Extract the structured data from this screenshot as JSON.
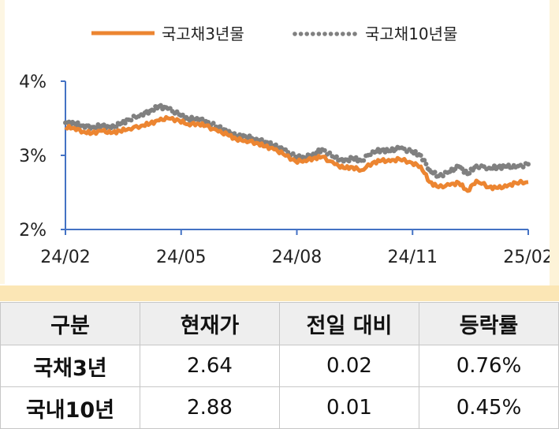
{
  "chart_data": {
    "type": "line",
    "legend": {
      "position": "top-center"
    },
    "x_ticks": [
      "24/02",
      "24/05",
      "24/08",
      "24/11",
      "25/02"
    ],
    "y_ticks": [
      "4%",
      "3%",
      "2%"
    ],
    "ylim": [
      2,
      4
    ],
    "xlim": [
      "2024-02-01",
      "2025-02-01"
    ],
    "grid": false,
    "series": [
      {
        "name": "국고채3년물",
        "color": "#ec8531",
        "style": "solid",
        "points": [
          [
            "2024-02-01",
            3.38
          ],
          [
            "2024-02-08",
            3.37
          ],
          [
            "2024-02-15",
            3.32
          ],
          [
            "2024-02-22",
            3.3
          ],
          [
            "2024-03-01",
            3.33
          ],
          [
            "2024-03-08",
            3.3
          ],
          [
            "2024-03-15",
            3.33
          ],
          [
            "2024-03-22",
            3.36
          ],
          [
            "2024-04-01",
            3.4
          ],
          [
            "2024-04-08",
            3.43
          ],
          [
            "2024-04-15",
            3.47
          ],
          [
            "2024-04-22",
            3.5
          ],
          [
            "2024-05-01",
            3.47
          ],
          [
            "2024-05-08",
            3.42
          ],
          [
            "2024-05-15",
            3.43
          ],
          [
            "2024-05-22",
            3.4
          ],
          [
            "2024-06-01",
            3.32
          ],
          [
            "2024-06-08",
            3.28
          ],
          [
            "2024-06-15",
            3.22
          ],
          [
            "2024-06-22",
            3.2
          ],
          [
            "2024-07-01",
            3.17
          ],
          [
            "2024-07-08",
            3.12
          ],
          [
            "2024-07-15",
            3.08
          ],
          [
            "2024-07-22",
            3.02
          ],
          [
            "2024-08-01",
            2.92
          ],
          [
            "2024-08-08",
            2.93
          ],
          [
            "2024-08-15",
            2.96
          ],
          [
            "2024-08-22",
            2.98
          ],
          [
            "2024-09-01",
            2.88
          ],
          [
            "2024-09-08",
            2.83
          ],
          [
            "2024-09-15",
            2.84
          ],
          [
            "2024-09-22",
            2.8
          ],
          [
            "2024-10-01",
            2.9
          ],
          [
            "2024-10-08",
            2.93
          ],
          [
            "2024-10-15",
            2.92
          ],
          [
            "2024-10-22",
            2.95
          ],
          [
            "2024-11-01",
            2.9
          ],
          [
            "2024-11-08",
            2.85
          ],
          [
            "2024-11-15",
            2.64
          ],
          [
            "2024-11-22",
            2.57
          ],
          [
            "2024-12-01",
            2.6
          ],
          [
            "2024-12-08",
            2.63
          ],
          [
            "2024-12-15",
            2.52
          ],
          [
            "2024-12-22",
            2.66
          ],
          [
            "2025-01-01",
            2.57
          ],
          [
            "2025-01-08",
            2.56
          ],
          [
            "2025-01-15",
            2.58
          ],
          [
            "2025-01-22",
            2.63
          ],
          [
            "2025-02-01",
            2.64
          ]
        ]
      },
      {
        "name": "국고채10년물",
        "color": "#808080",
        "style": "dotted",
        "points": [
          [
            "2024-02-01",
            3.44
          ],
          [
            "2024-02-08",
            3.43
          ],
          [
            "2024-02-15",
            3.4
          ],
          [
            "2024-02-22",
            3.38
          ],
          [
            "2024-03-01",
            3.4
          ],
          [
            "2024-03-08",
            3.37
          ],
          [
            "2024-03-15",
            3.42
          ],
          [
            "2024-03-22",
            3.48
          ],
          [
            "2024-04-01",
            3.55
          ],
          [
            "2024-04-08",
            3.6
          ],
          [
            "2024-04-15",
            3.66
          ],
          [
            "2024-04-22",
            3.63
          ],
          [
            "2024-05-01",
            3.55
          ],
          [
            "2024-05-08",
            3.49
          ],
          [
            "2024-05-15",
            3.5
          ],
          [
            "2024-05-22",
            3.46
          ],
          [
            "2024-06-01",
            3.38
          ],
          [
            "2024-06-08",
            3.32
          ],
          [
            "2024-06-15",
            3.26
          ],
          [
            "2024-06-22",
            3.26
          ],
          [
            "2024-07-01",
            3.22
          ],
          [
            "2024-07-08",
            3.18
          ],
          [
            "2024-07-15",
            3.13
          ],
          [
            "2024-07-22",
            3.08
          ],
          [
            "2024-08-01",
            2.98
          ],
          [
            "2024-08-08",
            2.97
          ],
          [
            "2024-08-15",
            3.02
          ],
          [
            "2024-08-22",
            3.08
          ],
          [
            "2024-09-01",
            2.97
          ],
          [
            "2024-09-08",
            2.92
          ],
          [
            "2024-09-15",
            2.96
          ],
          [
            "2024-09-22",
            2.93
          ],
          [
            "2024-10-01",
            3.05
          ],
          [
            "2024-10-08",
            3.07
          ],
          [
            "2024-10-15",
            3.06
          ],
          [
            "2024-10-22",
            3.1
          ],
          [
            "2024-11-01",
            3.05
          ],
          [
            "2024-11-08",
            3.0
          ],
          [
            "2024-11-15",
            2.8
          ],
          [
            "2024-11-22",
            2.72
          ],
          [
            "2024-12-01",
            2.78
          ],
          [
            "2024-12-08",
            2.85
          ],
          [
            "2024-12-15",
            2.75
          ],
          [
            "2024-12-22",
            2.86
          ],
          [
            "2025-01-01",
            2.83
          ],
          [
            "2025-01-08",
            2.84
          ],
          [
            "2025-01-15",
            2.85
          ],
          [
            "2025-01-22",
            2.84
          ],
          [
            "2025-02-01",
            2.88
          ]
        ]
      }
    ]
  },
  "table": {
    "headers": [
      "구분",
      "현재가",
      "전일 대비",
      "등락률"
    ],
    "rows": [
      [
        "국채3년",
        "2.64",
        "0.02",
        "0.76%"
      ],
      [
        "국내10년",
        "2.88",
        "0.01",
        "0.45%"
      ]
    ]
  },
  "colors": {
    "axis": "#4472c4",
    "band": "#fbe6b5",
    "header_bg": "#eeeeee"
  }
}
